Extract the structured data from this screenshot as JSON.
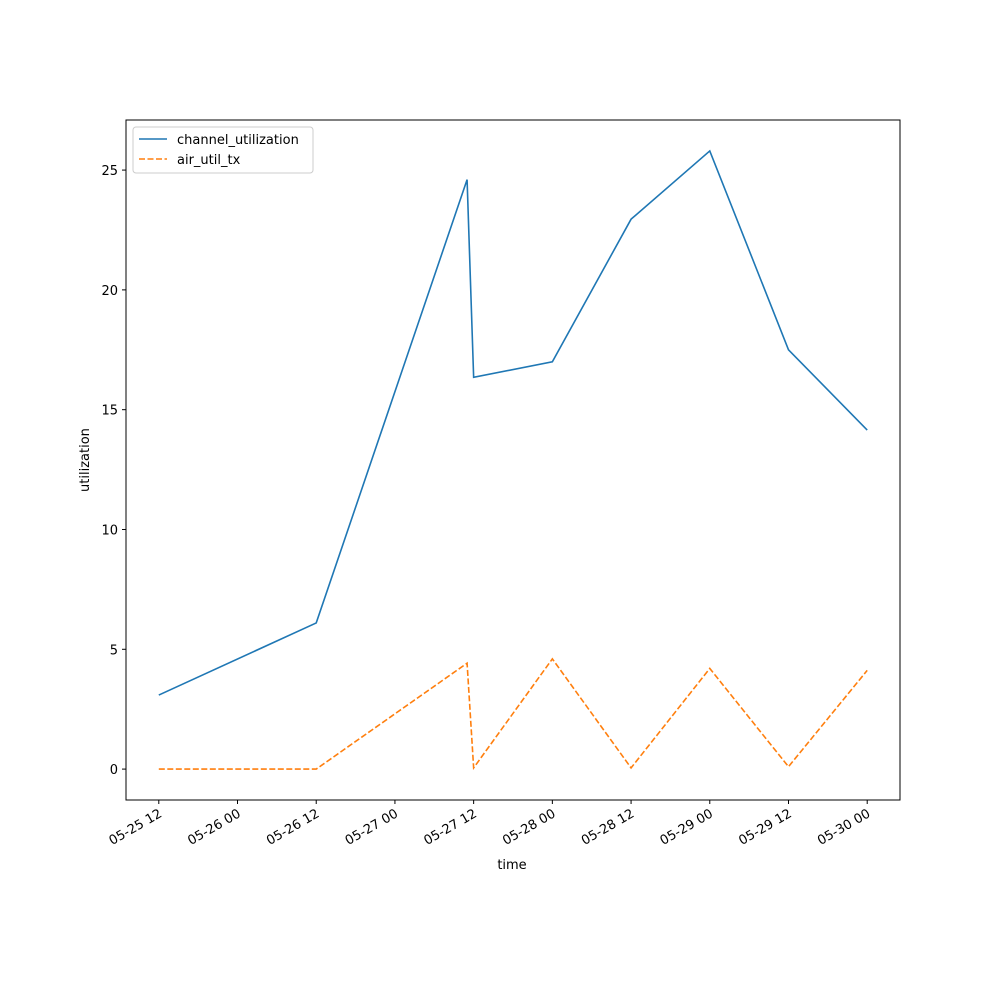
{
  "chart_data": {
    "type": "line",
    "xlabel": "time",
    "ylabel": "utilization",
    "x": [
      "05-25 12",
      "05-26 12",
      "05-27 11",
      "05-27 12",
      "05-28 00",
      "05-28 12",
      "05-29 00",
      "05-29 12",
      "05-30 00"
    ],
    "series": [
      {
        "name": "channel_utilization",
        "color": "#1f77b4",
        "dash": "solid",
        "values": [
          3.09,
          6.1,
          24.6,
          16.35,
          17.0,
          22.95,
          25.8,
          17.5,
          14.15
        ]
      },
      {
        "name": "air_util_tx",
        "color": "#ff7f0e",
        "dash": "dashed",
        "values": [
          0.0,
          0.0,
          4.42,
          0.05,
          4.6,
          0.05,
          4.2,
          0.1,
          4.12
        ]
      }
    ],
    "xlim": [
      "05-25 07",
      "05-30 05"
    ],
    "xticks": [
      "05-25 12",
      "05-26 00",
      "05-26 12",
      "05-27 00",
      "05-27 12",
      "05-28 00",
      "05-28 12",
      "05-29 00",
      "05-29 12",
      "05-30 00"
    ],
    "ylim": [
      -1.29,
      27.09
    ],
    "yticks": [
      0,
      5,
      10,
      15,
      20,
      25
    ],
    "legend": "upper left",
    "grid": false
  }
}
